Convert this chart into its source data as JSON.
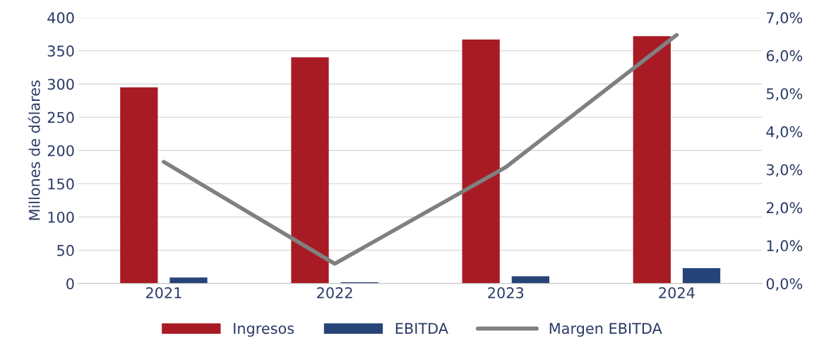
{
  "chart_data": {
    "type": "bar",
    "ylabel": "Millones de dólares",
    "categories": [
      "2021",
      "2022",
      "2023",
      "2024"
    ],
    "series": [
      {
        "name": "Ingresos",
        "color": "#a91b24",
        "values": [
          295,
          340,
          367,
          372
        ]
      },
      {
        "name": "EBITDA",
        "color": "#264478",
        "values": [
          9,
          2,
          11,
          23
        ]
      },
      {
        "name": "Margen EBITDA",
        "type": "line",
        "axis": "y2",
        "color": "#808080",
        "values": [
          3.2,
          0.52,
          3.06,
          6.54
        ]
      }
    ],
    "ylim": [
      0,
      400
    ],
    "yticks": [
      0,
      50,
      100,
      150,
      200,
      250,
      300,
      350,
      400
    ],
    "y2lim": [
      0,
      7
    ],
    "y2ticks": [
      {
        "value": 0,
        "label": "0,0%"
      },
      {
        "value": 1,
        "label": "1,0%"
      },
      {
        "value": 2,
        "label": "2,0%"
      },
      {
        "value": 3,
        "label": "3,0%"
      },
      {
        "value": 4,
        "label": "4,0%"
      },
      {
        "value": 5,
        "label": "5,0%"
      },
      {
        "value": 6,
        "label": "6,0%"
      },
      {
        "value": 7,
        "label": "7,0%"
      }
    ],
    "grid": "y",
    "legend": "bottom",
    "marker": "none",
    "line_style": "solid"
  }
}
